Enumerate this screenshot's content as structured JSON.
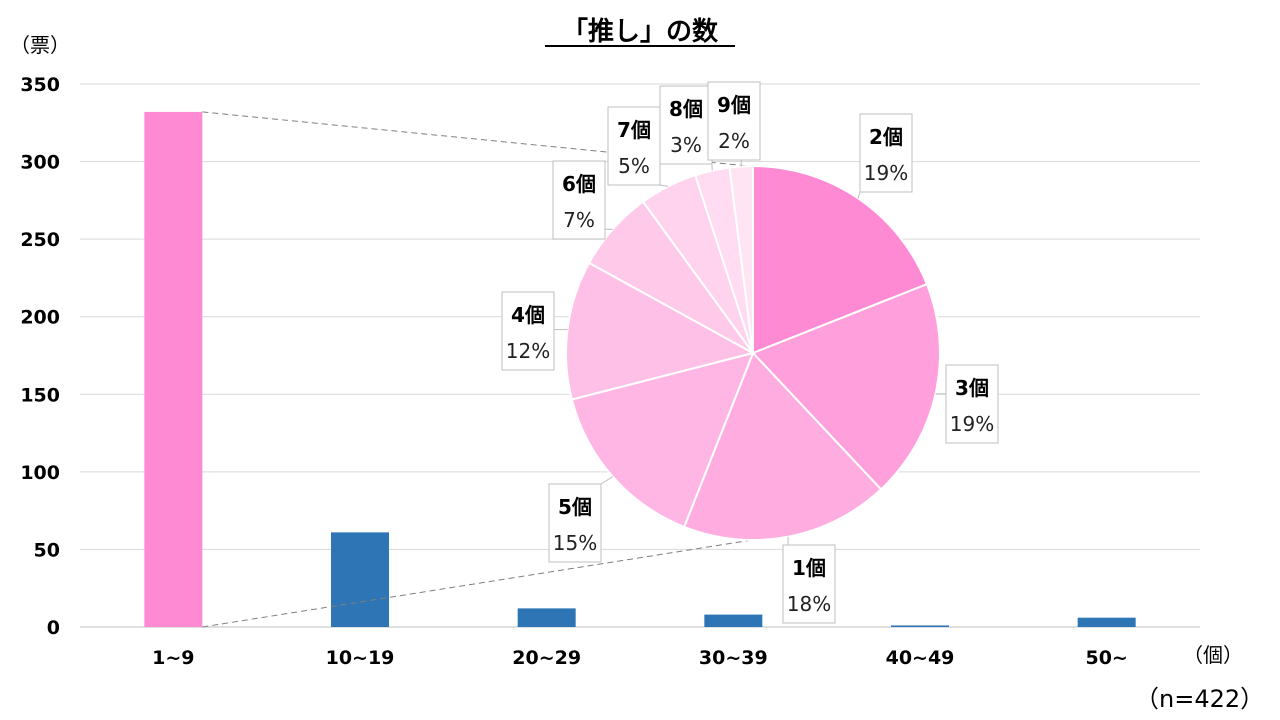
{
  "chart_data": [
    {
      "type": "bar",
      "title": "「推し」の数",
      "ylabel": "（票）",
      "xlabel": "（個）",
      "ylim": [
        0,
        350
      ],
      "yticks": [
        0,
        50,
        100,
        150,
        200,
        250,
        300,
        350
      ],
      "categories": [
        "1~9",
        "10~19",
        "20~29",
        "30~39",
        "40~49",
        "50~"
      ],
      "values": [
        332,
        61,
        12,
        8,
        1,
        6
      ],
      "highlight_index": 0,
      "colors": {
        "highlight": "#FF8AD4",
        "normal": "#2E75B6"
      },
      "grid": true
    },
    {
      "type": "pie",
      "detail_of": "1~9",
      "slices": [
        {
          "label": "2個",
          "pct": "19%",
          "value": 19,
          "color": "#FF8AD4"
        },
        {
          "label": "3個",
          "pct": "19%",
          "value": 19,
          "color": "#FFA0DC"
        },
        {
          "label": "1個",
          "pct": "18%",
          "value": 18,
          "color": "#FFACE0"
        },
        {
          "label": "5個",
          "pct": "15%",
          "value": 15,
          "color": "#FFB6E4"
        },
        {
          "label": "4個",
          "pct": "12%",
          "value": 12,
          "color": "#FFC0E7"
        },
        {
          "label": "6個",
          "pct": "7%",
          "value": 7,
          "color": "#FFC9EA"
        },
        {
          "label": "7個",
          "pct": "5%",
          "value": 5,
          "color": "#FFD3EE"
        },
        {
          "label": "8個",
          "pct": "3%",
          "value": 3,
          "color": "#FFDCF1"
        },
        {
          "label": "9個",
          "pct": "2%",
          "value": 2,
          "color": "#FFE5F4"
        }
      ]
    }
  ],
  "footnote": "（n=422）"
}
